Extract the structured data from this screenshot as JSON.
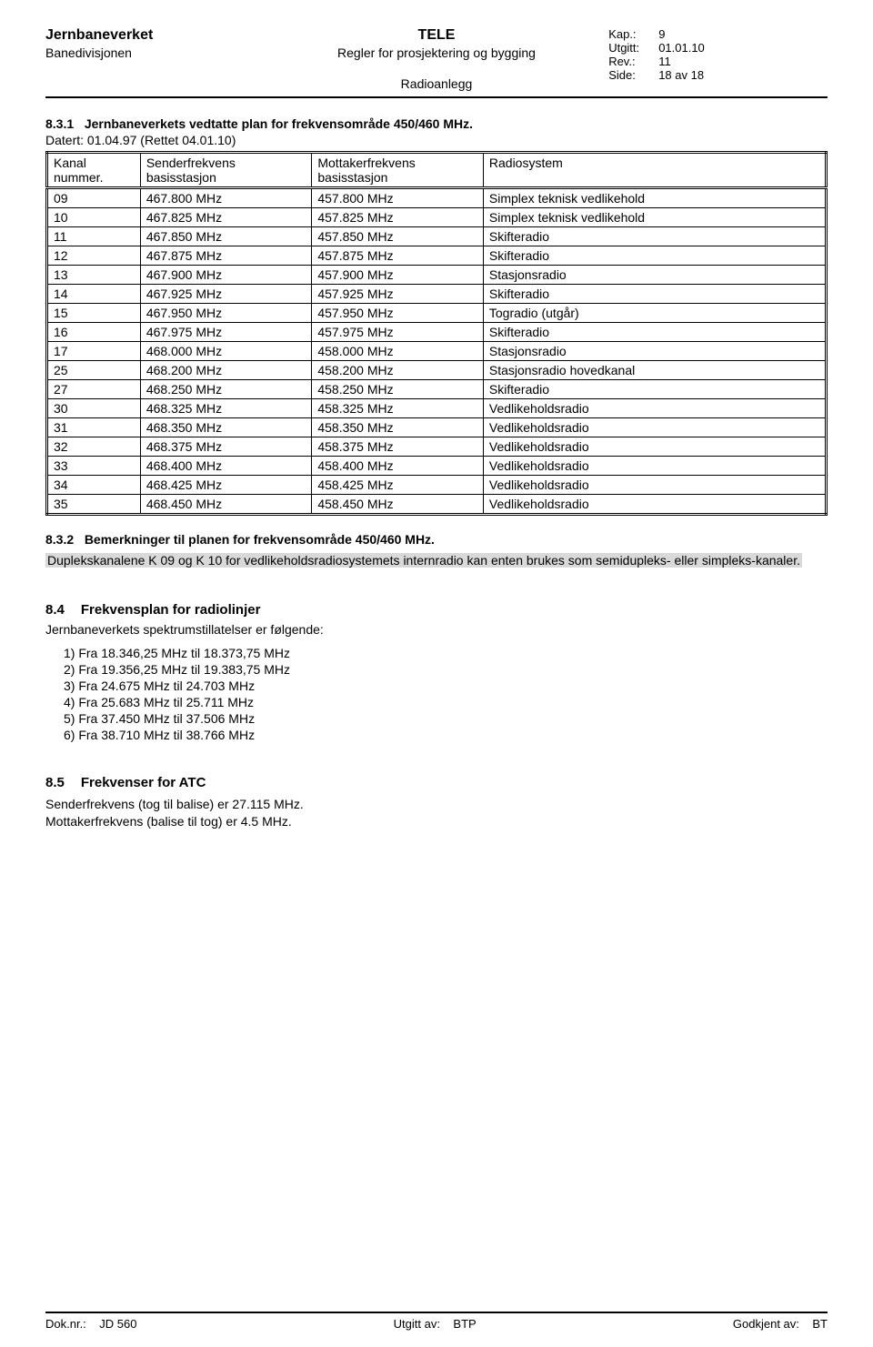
{
  "header": {
    "org": "Jernbaneverket",
    "division": "Banedivisjonen",
    "tele": "TELE",
    "subtitle": "Regler for prosjektering og bygging",
    "subtitle2": "Radioanlegg",
    "meta": {
      "kap_label": "Kap.:",
      "kap_value": "9",
      "utgitt_label": "Utgitt:",
      "utgitt_value": "01.01.10",
      "rev_label": "Rev.:",
      "rev_value": "11",
      "side_label": "Side:",
      "side_value": "18 av 18"
    }
  },
  "section_831": {
    "number": "8.3.1",
    "title": "Jernbaneverkets vedtatte plan for frekvensområde 450/460 MHz.",
    "dated": "Datert: 01.04.97 (Rettet 04.01.10)"
  },
  "freq_table": {
    "headers": {
      "col1a": "Kanal",
      "col1b": "nummer.",
      "col2a": "Senderfrekvens",
      "col2b": "basisstasjon",
      "col3a": "Mottakerfrekvens",
      "col3b": "basisstasjon",
      "col4": "Radiosystem"
    },
    "rows": [
      {
        "k": "09",
        "tx": "467.800 MHz",
        "rx": "457.800 MHz",
        "sys": "Simplex teknisk vedlikehold"
      },
      {
        "k": "10",
        "tx": "467.825 MHz",
        "rx": "457.825 MHz",
        "sys": "Simplex teknisk vedlikehold"
      },
      {
        "k": "11",
        "tx": "467.850 MHz",
        "rx": "457.850 MHz",
        "sys": "Skifteradio"
      },
      {
        "k": "12",
        "tx": "467.875 MHz",
        "rx": "457.875 MHz",
        "sys": "Skifteradio"
      },
      {
        "k": "13",
        "tx": "467.900 MHz",
        "rx": "457.900 MHz",
        "sys": "Stasjonsradio"
      },
      {
        "k": "14",
        "tx": "467.925 MHz",
        "rx": "457.925 MHz",
        "sys": "Skifteradio"
      },
      {
        "k": "15",
        "tx": "467.950 MHz",
        "rx": "457.950 MHz",
        "sys": "Togradio  (utgår)"
      },
      {
        "k": "16",
        "tx": "467.975 MHz",
        "rx": "457.975 MHz",
        "sys": "Skifteradio"
      },
      {
        "k": "17",
        "tx": "468.000 MHz",
        "rx": "458.000 MHz",
        "sys": "Stasjonsradio"
      },
      {
        "k": "25",
        "tx": "468.200 MHz",
        "rx": "458.200 MHz",
        "sys": "Stasjonsradio hovedkanal"
      },
      {
        "k": "27",
        "tx": "468.250 MHz",
        "rx": "458.250 MHz",
        "sys": "Skifteradio"
      },
      {
        "k": "30",
        "tx": "468.325 MHz",
        "rx": "458.325 MHz",
        "sys": "Vedlikeholdsradio"
      },
      {
        "k": "31",
        "tx": "468.350 MHz",
        "rx": "458.350 MHz",
        "sys": "Vedlikeholdsradio"
      },
      {
        "k": "32",
        "tx": "468.375 MHz",
        "rx": "458.375 MHz",
        "sys": "Vedlikeholdsradio"
      },
      {
        "k": "33",
        "tx": "468.400 MHz",
        "rx": "458.400 MHz",
        "sys": "Vedlikeholdsradio"
      },
      {
        "k": "34",
        "tx": "468.425 MHz",
        "rx": "458.425 MHz",
        "sys": "Vedlikeholdsradio"
      },
      {
        "k": "35",
        "tx": "468.450 MHz",
        "rx": "458.450 MHz",
        "sys": "Vedlikeholdsradio"
      }
    ]
  },
  "section_832": {
    "number": "8.3.2",
    "title": "Bemerkninger til planen for frekvensområde 450/460 MHz.",
    "body": "Duplekskanalene K 09 og K 10 for vedlikeholdsradiosystemets internradio  kan enten brukes som semidupleks- eller simpleks-kanaler."
  },
  "section_84": {
    "number": "8.4",
    "title": "Frekvensplan for radiolinjer",
    "intro": "Jernbaneverkets spektrumstillatelser er følgende:",
    "items": [
      "Fra 18.346,25 MHz til 18.373,75 MHz",
      "Fra 19.356,25 MHz til 19.383,75 MHz",
      "Fra 24.675 MHz til 24.703 MHz",
      "Fra 25.683 MHz til 25.711 MHz",
      "Fra 37.450 MHz til 37.506 MHz",
      "Fra 38.710 MHz til 38.766 MHz"
    ]
  },
  "section_85": {
    "number": "8.5",
    "title": "Frekvenser for ATC",
    "line1": "Senderfrekvens (tog til balise) er 27.115 MHz.",
    "line2": "Mottakerfrekvens (balise til tog) er 4.5 MHz."
  },
  "footer": {
    "left_label": "Dok.nr.:",
    "left_value": "JD 560",
    "mid_label": "Utgitt av:",
    "mid_value": "BTP",
    "right_label": "Godkjent av:",
    "right_value": "BT"
  }
}
